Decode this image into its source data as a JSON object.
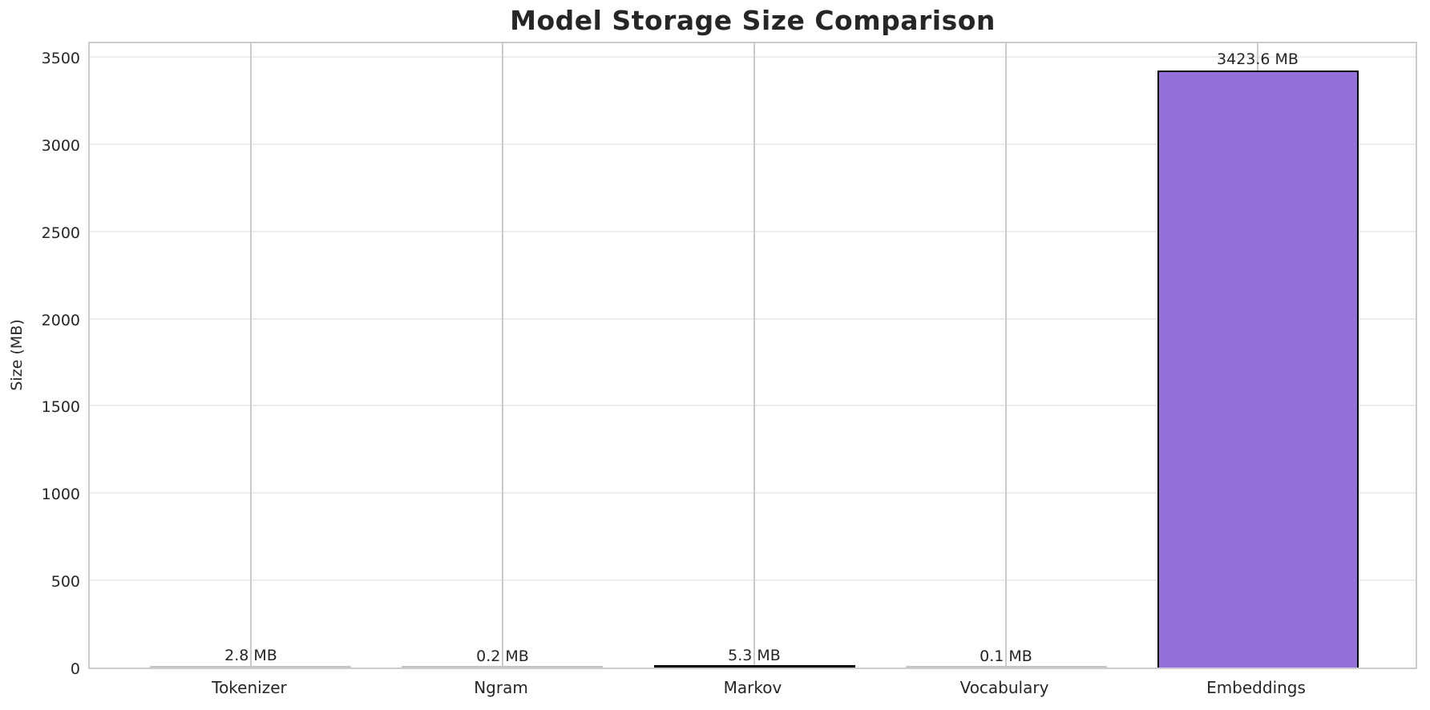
{
  "chart_data": {
    "type": "bar",
    "title": "Model Storage Size Comparison",
    "xlabel": "",
    "ylabel": "Size (MB)",
    "categories": [
      "Tokenizer",
      "Ngram",
      "Markov",
      "Vocabulary",
      "Embeddings"
    ],
    "values": [
      2.8,
      0.2,
      5.3,
      0.1,
      3423.6
    ],
    "bar_labels": [
      "2.8 MB",
      "0.2 MB",
      "5.3 MB",
      "0.1 MB",
      "3423.6 MB"
    ],
    "yticks": [
      0,
      500,
      1000,
      1500,
      2000,
      2500,
      3000,
      3500
    ],
    "ylim": [
      0,
      3596
    ],
    "grid": true,
    "legend": false,
    "bar_width_fraction": 0.8,
    "colors": {
      "bar_fill": "#9370DB",
      "bar_edge": "#000000",
      "sliver_dark": "#000000",
      "sliver_light": "#c4c4c4",
      "text": "#262626",
      "grid_vertical": "#cbcbcb",
      "grid_horizontal": "#ececec",
      "spine": "#cccccc",
      "background": "#ffffff"
    }
  }
}
